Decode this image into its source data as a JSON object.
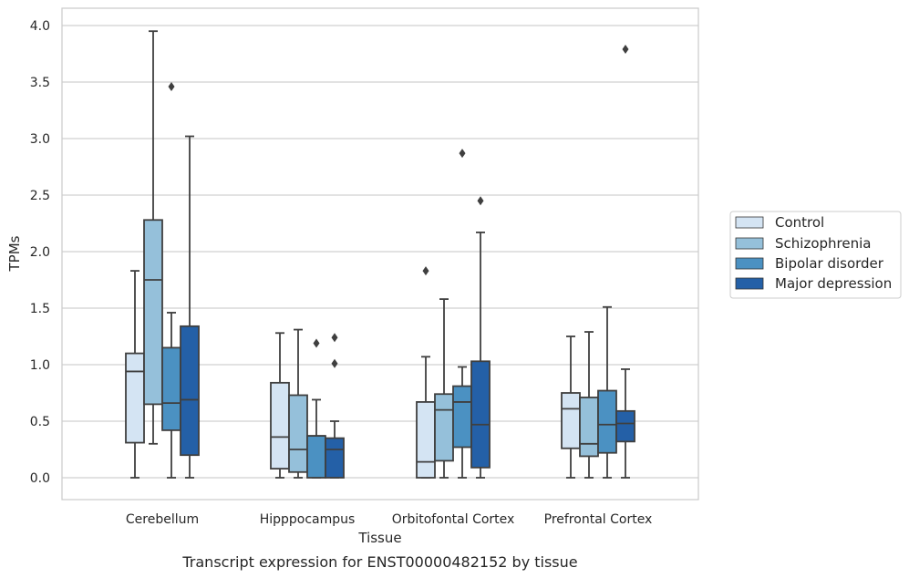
{
  "chart_data": {
    "type": "boxplot",
    "caption": "Transcript expression for ENST00000482152 by tissue",
    "xlabel": "Tissue",
    "ylabel": "TPMs",
    "ylim": [
      -0.19,
      4.16
    ],
    "yticks": [
      "0.0",
      "0.5",
      "1.0",
      "1.5",
      "2.0",
      "2.5",
      "3.0",
      "3.5",
      "4.0"
    ],
    "grid": true,
    "legend_position": "right",
    "categories": [
      "Cerebellum",
      "Hipppocampus",
      "Orbitofontal Cortex",
      "Prefrontal Cortex"
    ],
    "colors": [
      "#d4e4f3",
      "#95c0da",
      "#4b91c2",
      "#2460a7"
    ],
    "series": [
      {
        "name": "Control",
        "boxes": [
          {
            "min": 0.0,
            "q1": 0.31,
            "median": 0.94,
            "q3": 1.1,
            "max": 1.83,
            "outliers": []
          },
          {
            "min": 0.0,
            "q1": 0.08,
            "median": 0.36,
            "q3": 0.84,
            "max": 1.28,
            "outliers": []
          },
          {
            "min": 0.0,
            "q1": 0.0,
            "median": 0.14,
            "q3": 0.67,
            "max": 1.07,
            "outliers": [
              1.83
            ]
          },
          {
            "min": 0.0,
            "q1": 0.26,
            "median": 0.61,
            "q3": 0.75,
            "max": 1.25,
            "outliers": []
          }
        ]
      },
      {
        "name": "Schizophrenia",
        "boxes": [
          {
            "min": 0.3,
            "q1": 0.65,
            "median": 1.75,
            "q3": 2.28,
            "max": 3.95,
            "outliers": []
          },
          {
            "min": 0.0,
            "q1": 0.05,
            "median": 0.25,
            "q3": 0.73,
            "max": 1.31,
            "outliers": []
          },
          {
            "min": 0.0,
            "q1": 0.15,
            "median": 0.6,
            "q3": 0.74,
            "max": 1.58,
            "outliers": []
          },
          {
            "min": 0.0,
            "q1": 0.19,
            "median": 0.3,
            "q3": 0.71,
            "max": 1.29,
            "outliers": []
          }
        ]
      },
      {
        "name": "Bipolar disorder",
        "boxes": [
          {
            "min": 0.0,
            "q1": 0.42,
            "median": 0.66,
            "q3": 1.15,
            "max": 1.46,
            "outliers": [
              3.46
            ]
          },
          {
            "min": 0.0,
            "q1": 0.0,
            "median": 0.37,
            "q3": 0.37,
            "max": 0.69,
            "outliers": [
              1.19
            ]
          },
          {
            "min": 0.0,
            "q1": 0.27,
            "median": 0.67,
            "q3": 0.81,
            "max": 0.98,
            "outliers": [
              2.87
            ]
          },
          {
            "min": 0.0,
            "q1": 0.22,
            "median": 0.47,
            "q3": 0.77,
            "max": 1.51,
            "outliers": []
          }
        ]
      },
      {
        "name": "Major depression",
        "boxes": [
          {
            "min": 0.0,
            "q1": 0.2,
            "median": 0.69,
            "q3": 1.34,
            "max": 3.02,
            "outliers": []
          },
          {
            "min": 0.0,
            "q1": 0.0,
            "median": 0.25,
            "q3": 0.35,
            "max": 0.5,
            "outliers": [
              1.01,
              1.24
            ]
          },
          {
            "min": 0.0,
            "q1": 0.09,
            "median": 0.47,
            "q3": 1.03,
            "max": 2.17,
            "outliers": [
              2.45
            ]
          },
          {
            "min": 0.0,
            "q1": 0.32,
            "median": 0.48,
            "q3": 0.59,
            "max": 0.96,
            "outliers": [
              3.79
            ]
          }
        ]
      }
    ]
  }
}
